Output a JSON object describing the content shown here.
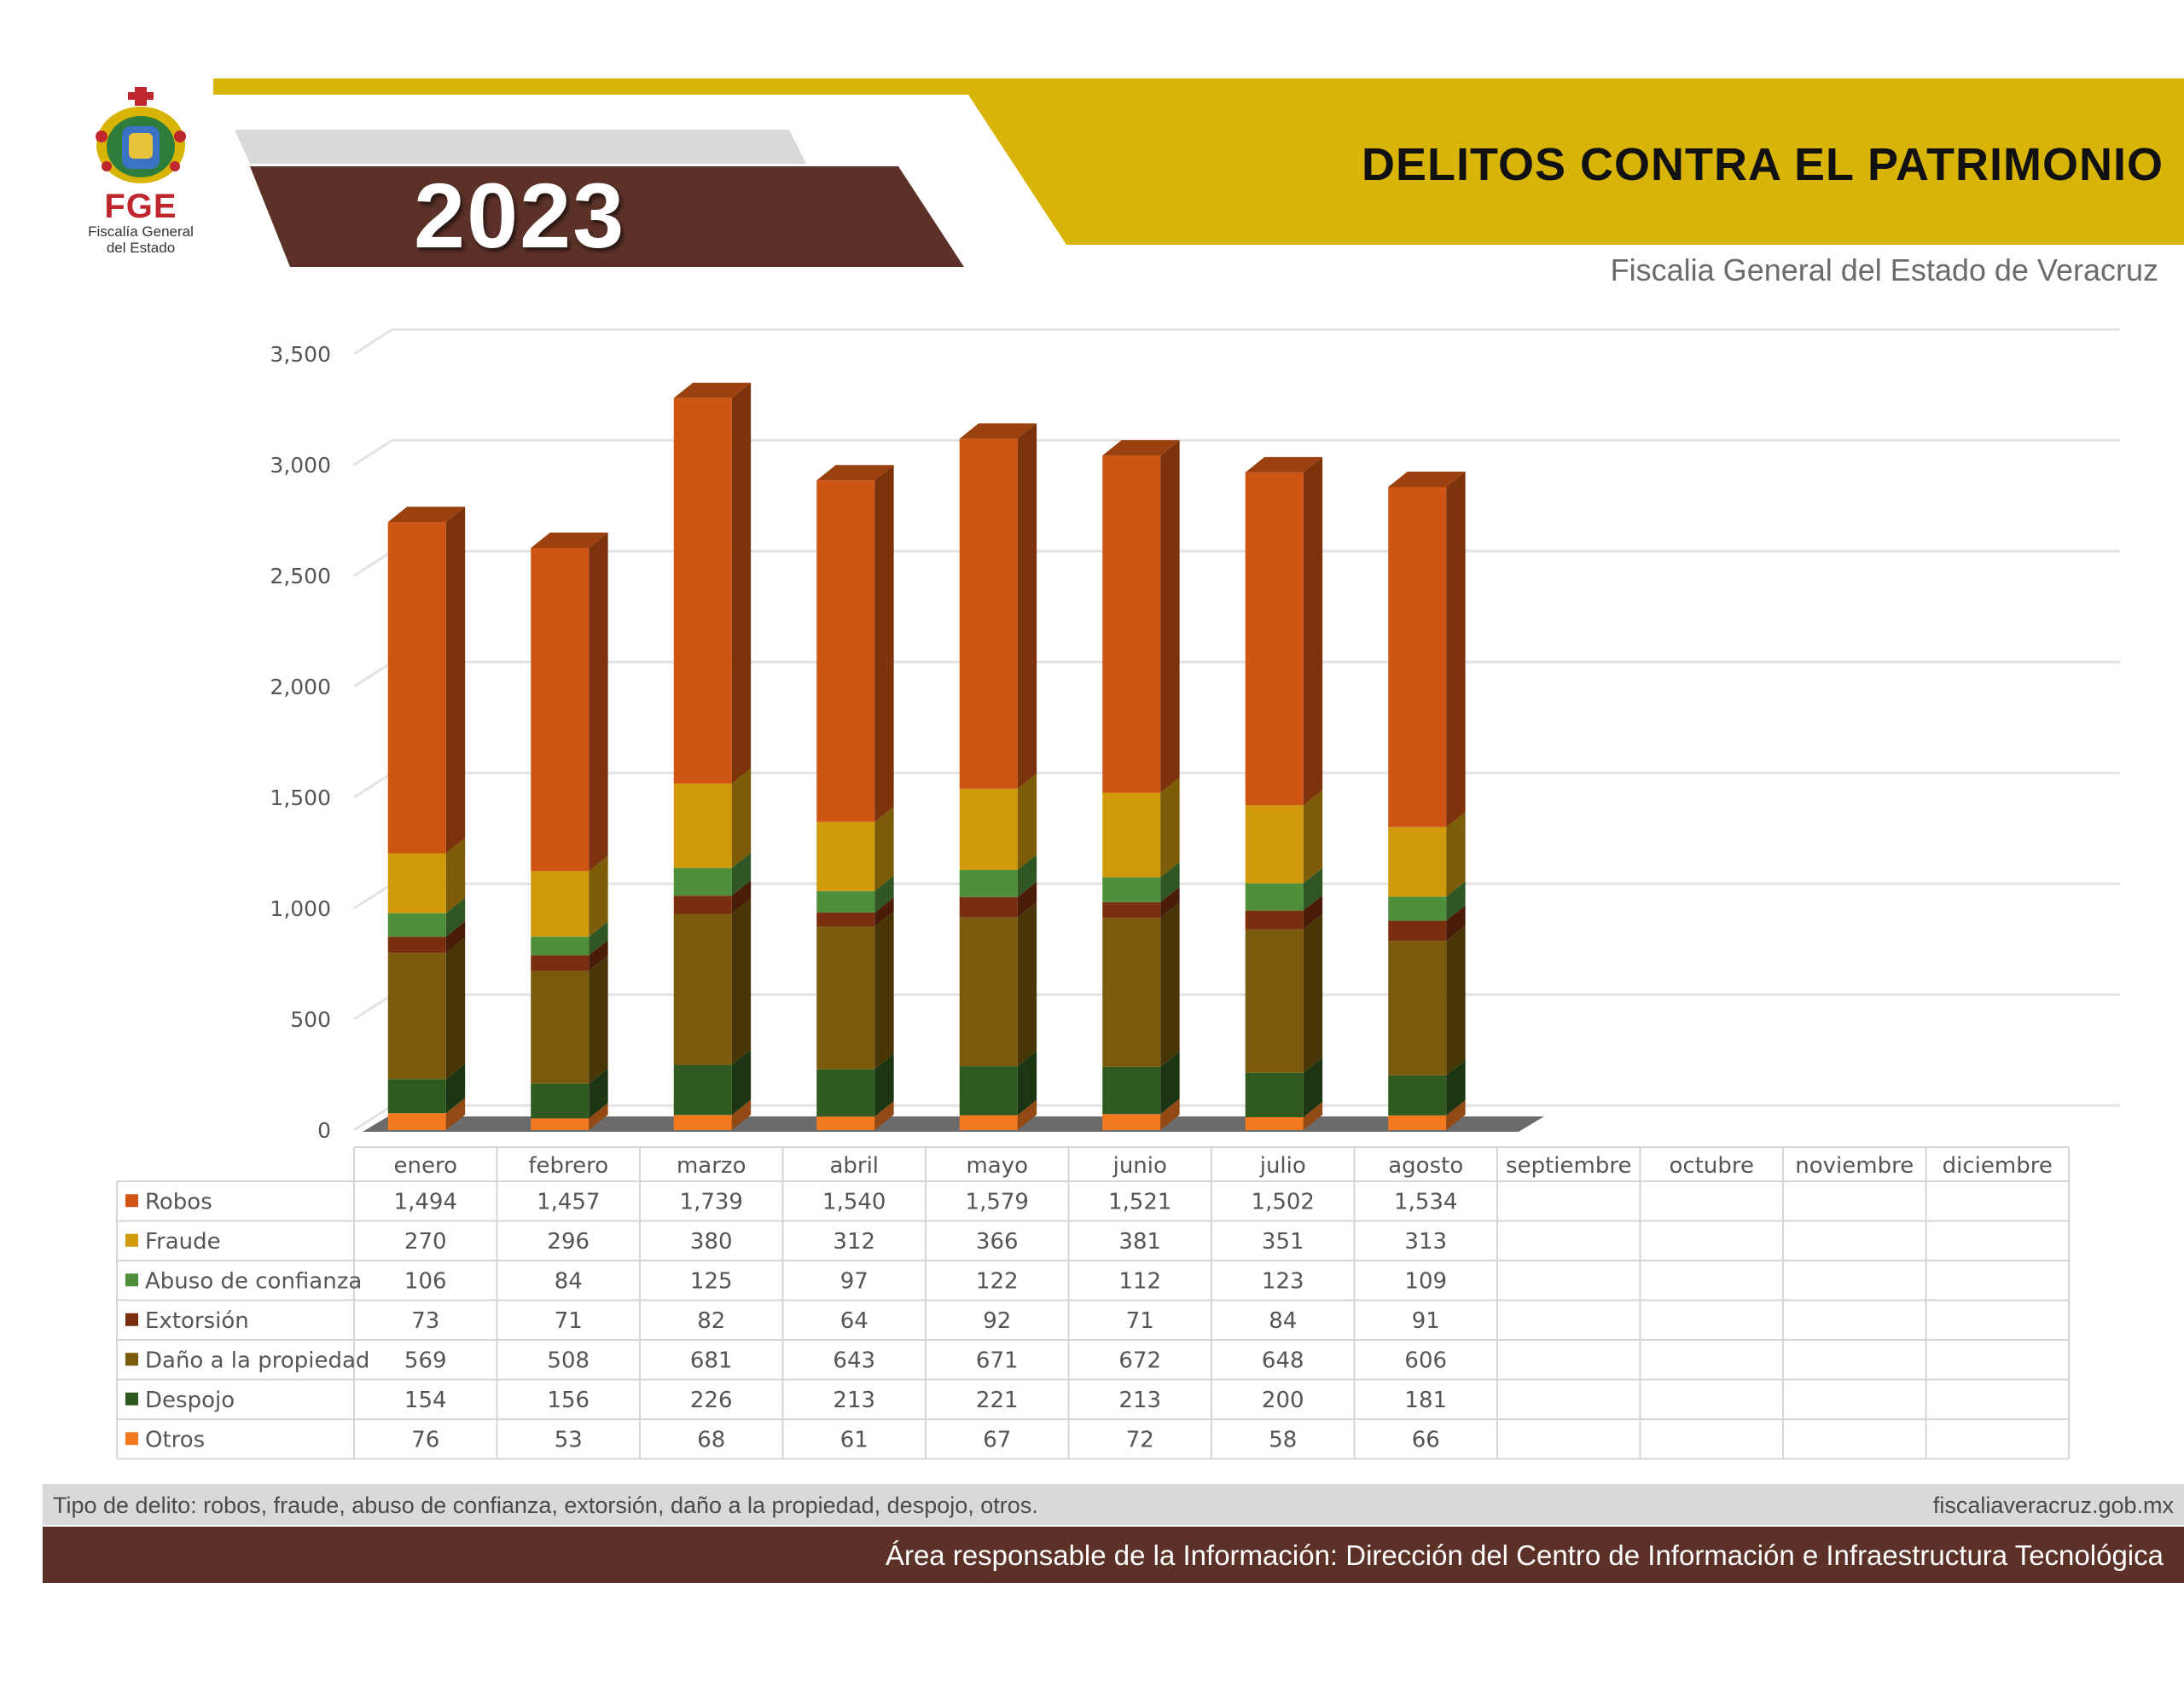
{
  "header": {
    "org_short": "FGE",
    "org_long_line1": "Fiscalía General",
    "org_long_line2": "del Estado",
    "year": "2023",
    "title": "DELITOS CONTRA EL PATRIMONIO",
    "subtitle": "Fiscalia General del Estado de Veracruz",
    "logo_icon": "coat-of-arms-icon"
  },
  "colors": {
    "gold": "#d8b406",
    "brown": "#5b3128",
    "light_gray": "#d9d9d9"
  },
  "chart_data": {
    "type": "bar",
    "stacked": true,
    "three_d": true,
    "categories": [
      "enero",
      "febrero",
      "marzo",
      "abril",
      "mayo",
      "junio",
      "julio",
      "agosto",
      "septiembre",
      "octubre",
      "noviembre",
      "diciembre"
    ],
    "y_ticks": [
      "0",
      "500",
      "1,000",
      "1,500",
      "2,000",
      "2,500",
      "3,000",
      "3,500"
    ],
    "ylim": [
      0,
      3500
    ],
    "grid": true,
    "series": [
      {
        "name": "Otros",
        "color": "#f47a20",
        "values": [
          76,
          53,
          68,
          61,
          67,
          72,
          58,
          66,
          null,
          null,
          null,
          null
        ],
        "labels": [
          "76",
          "53",
          "68",
          "61",
          "67",
          "72",
          "58",
          "66",
          "",
          "",
          "",
          ""
        ]
      },
      {
        "name": "Despojo",
        "color": "#2e5a1f",
        "values": [
          154,
          156,
          226,
          213,
          221,
          213,
          200,
          181,
          null,
          null,
          null,
          null
        ],
        "labels": [
          "154",
          "156",
          "226",
          "213",
          "221",
          "213",
          "200",
          "181",
          "",
          "",
          "",
          ""
        ]
      },
      {
        "name": "Daño a la propiedad",
        "color": "#7a5a0c",
        "values": [
          569,
          508,
          681,
          643,
          671,
          672,
          648,
          606,
          null,
          null,
          null,
          null
        ],
        "labels": [
          "569",
          "508",
          "681",
          "643",
          "671",
          "672",
          "648",
          "606",
          "",
          "",
          "",
          ""
        ]
      },
      {
        "name": "Extorsión",
        "color": "#7a2e10",
        "values": [
          73,
          71,
          82,
          64,
          92,
          71,
          84,
          91,
          null,
          null,
          null,
          null
        ],
        "labels": [
          "73",
          "71",
          "82",
          "64",
          "92",
          "71",
          "84",
          "91",
          "",
          "",
          "",
          ""
        ]
      },
      {
        "name": "Abuso de confianza",
        "color": "#4f8f3a",
        "values": [
          106,
          84,
          125,
          97,
          122,
          112,
          123,
          109,
          null,
          null,
          null,
          null
        ],
        "labels": [
          "106",
          "84",
          "125",
          "97",
          "122",
          "112",
          "123",
          "109",
          "",
          "",
          "",
          ""
        ]
      },
      {
        "name": "Fraude",
        "color": "#d19a0c",
        "values": [
          270,
          296,
          380,
          312,
          366,
          381,
          351,
          313,
          null,
          null,
          null,
          null
        ],
        "labels": [
          "270",
          "296",
          "380",
          "312",
          "366",
          "381",
          "351",
          "313",
          "",
          "",
          "",
          ""
        ]
      },
      {
        "name": "Robos",
        "color": "#cf5514",
        "values": [
          1494,
          1457,
          1739,
          1540,
          1579,
          1521,
          1502,
          1534,
          null,
          null,
          null,
          null
        ],
        "labels": [
          "1,494",
          "1,457",
          "1,739",
          "1,540",
          "1,579",
          "1,521",
          "1,502",
          "1,534",
          "",
          "",
          "",
          ""
        ]
      }
    ]
  },
  "footer": {
    "description": "Tipo de delito: robos, fraude, abuso de confianza, extorsión, daño a la propiedad, despojo,  otros.",
    "website": "fiscaliaveracruz.gob.mx",
    "credit": "Área responsable de la Información: Dirección del Centro de Información e Infraestructura Tecnológica"
  }
}
